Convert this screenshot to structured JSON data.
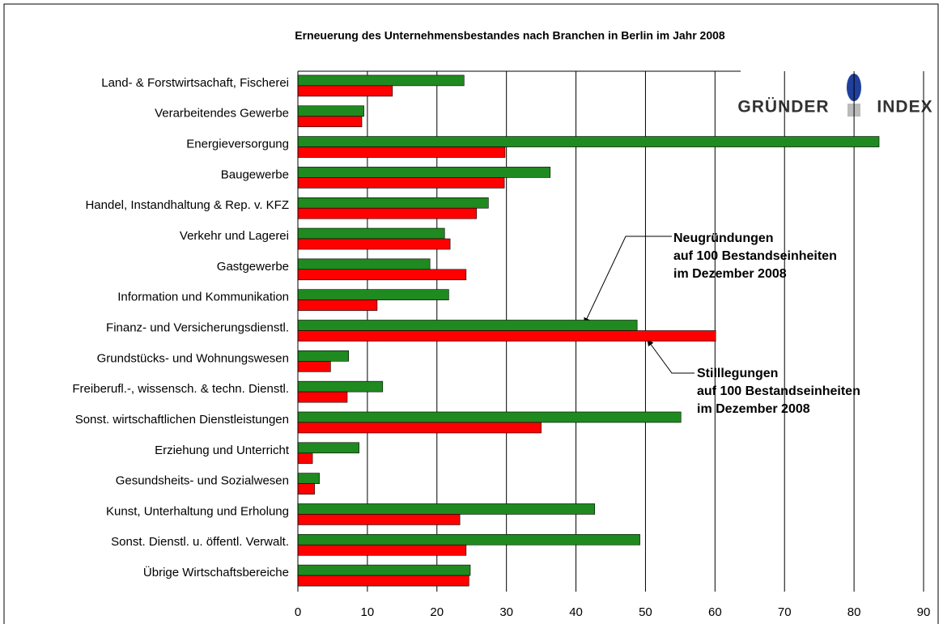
{
  "chart_data": {
    "type": "barh",
    "title": "Erneuerung des Unternehmensbestandes nach Branchen in Berlin im Jahr 2008",
    "categories": [
      "Land- & Forstwirtsachaft, Fischerei",
      "Verarbeitendes Gewerbe",
      "Energieversorgung",
      "Baugewerbe",
      "Handel, Instandhaltung & Rep. v. KFZ",
      "Verkehr und Lagerei",
      "Gastgewerbe",
      "Information und Kommunikation",
      "Finanz- und Versicherungsdienstl.",
      "Grundstücks- und Wohnungswesen",
      "Freiberufl.-, wissensch. & techn. Dienstl.",
      "Sonst. wirtschaftlichen Dienstleistungen",
      "Erziehung  und Unterricht",
      "Gesundsheits- und Sozialwesen",
      "Kunst, Unterhaltung und Erholung",
      "Sonst. Dienstl. u. öffentl. Verwalt.",
      "Übrige Wirtschaftsbereiche"
    ],
    "series": [
      {
        "color": "#1f8a1f",
        "values": [
          23.9,
          9.5,
          83.6,
          36.3,
          27.4,
          21.1,
          19.0,
          21.7,
          48.8,
          7.3,
          12.2,
          55.1,
          8.8,
          3.1,
          42.7,
          49.2,
          24.8
        ]
      },
      {
        "color": "#ff0000",
        "values": [
          13.6,
          9.2,
          29.8,
          29.7,
          25.7,
          21.9,
          24.2,
          11.4,
          60.1,
          4.7,
          7.1,
          35.0,
          2.1,
          2.4,
          23.3,
          24.2,
          24.6
        ]
      }
    ],
    "xlim": [
      0,
      90
    ],
    "xticks": [
      0,
      10,
      20,
      30,
      40,
      50,
      60,
      70,
      80,
      90
    ],
    "grid": true,
    "annotations": [
      {
        "lines": [
          "Neugründungen",
          "auf 100 Bestandseinheiten",
          "im Dezember 2008"
        ]
      },
      {
        "lines": [
          "Stilllegungen",
          "auf 100 Bestandseinheiten",
          "im Dezember 2008"
        ]
      }
    ],
    "logo": [
      "GRÜNDER",
      "INDEX"
    ]
  }
}
